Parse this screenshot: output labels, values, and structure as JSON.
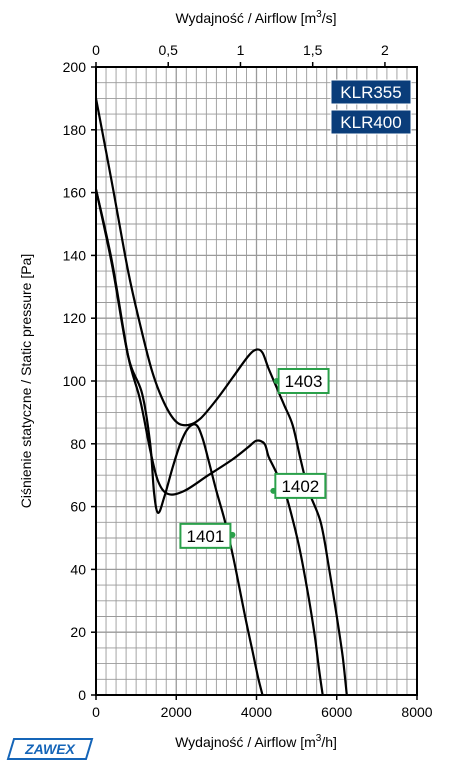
{
  "chart_data": {
    "type": "line",
    "title": "",
    "xlabel": "Wydajność / Airflow [m³/h]",
    "x2label": "Wydajność / Airflow [m³/s]",
    "ylabel": "Ciśnienie statyczne / Static pressure [Pa]",
    "xlim": [
      0,
      8000
    ],
    "x2lim": [
      0,
      2.222
    ],
    "ylim": [
      0,
      200
    ],
    "x_ticks": [
      0,
      2000,
      4000,
      6000,
      8000
    ],
    "x_tick_labels": [
      "0",
      "2000",
      "4000",
      "6000",
      "8000"
    ],
    "x2_ticks": [
      0,
      0.5,
      1,
      1.5,
      2
    ],
    "x2_tick_labels": [
      "0",
      "0,5",
      "1",
      "1,5",
      "2"
    ],
    "y_ticks": [
      0,
      20,
      40,
      60,
      80,
      100,
      120,
      140,
      160,
      180,
      200
    ],
    "y_tick_labels": [
      "0",
      "20",
      "40",
      "60",
      "80",
      "100",
      "120",
      "140",
      "160",
      "180",
      "200"
    ],
    "grid": true,
    "minor_grid_step_x": 250,
    "minor_grid_step_y": 5,
    "badges": [
      "KLR355",
      "KLR400"
    ],
    "series": [
      {
        "name": "1401",
        "label_point": [
          3400,
          51
        ],
        "points": [
          [
            0,
            161
          ],
          [
            400,
            137
          ],
          [
            800,
            108
          ],
          [
            1150,
            96
          ],
          [
            1350,
            80
          ],
          [
            1450,
            64
          ],
          [
            1550,
            58
          ],
          [
            1700,
            63
          ],
          [
            1900,
            72
          ],
          [
            2100,
            80
          ],
          [
            2300,
            85
          ],
          [
            2500,
            86
          ],
          [
            2650,
            82
          ],
          [
            2800,
            75
          ],
          [
            3000,
            65
          ],
          [
            3200,
            56
          ],
          [
            3350,
            48
          ],
          [
            3500,
            39
          ],
          [
            3700,
            26
          ],
          [
            3900,
            14
          ],
          [
            4050,
            5
          ],
          [
            4150,
            0
          ]
        ]
      },
      {
        "name": "1402",
        "label_point": [
          4420,
          65
        ],
        "points": [
          [
            0,
            161
          ],
          [
            400,
            138
          ],
          [
            800,
            108
          ],
          [
            1100,
            94
          ],
          [
            1350,
            78
          ],
          [
            1550,
            68
          ],
          [
            1800,
            64
          ],
          [
            2200,
            65
          ],
          [
            2800,
            70
          ],
          [
            3400,
            75
          ],
          [
            3800,
            79
          ],
          [
            4000,
            81
          ],
          [
            4200,
            80
          ],
          [
            4300,
            76
          ],
          [
            4450,
            72
          ],
          [
            4700,
            65
          ],
          [
            4900,
            56
          ],
          [
            5100,
            45
          ],
          [
            5300,
            31
          ],
          [
            5450,
            19
          ],
          [
            5550,
            9
          ],
          [
            5650,
            0
          ]
        ]
      },
      {
        "name": "1403",
        "label_point": [
          4500,
          100
        ],
        "points": [
          [
            0,
            190
          ],
          [
            400,
            163
          ],
          [
            800,
            135
          ],
          [
            1100,
            118
          ],
          [
            1400,
            103
          ],
          [
            1700,
            93
          ],
          [
            2000,
            87
          ],
          [
            2300,
            86
          ],
          [
            2600,
            88
          ],
          [
            3000,
            94
          ],
          [
            3400,
            101
          ],
          [
            3800,
            108
          ],
          [
            4000,
            110
          ],
          [
            4150,
            109
          ],
          [
            4300,
            104
          ],
          [
            4500,
            98
          ],
          [
            4700,
            92
          ],
          [
            4900,
            86
          ],
          [
            5100,
            75
          ],
          [
            5300,
            65
          ],
          [
            5600,
            55
          ],
          [
            5800,
            41
          ],
          [
            6000,
            25
          ],
          [
            6150,
            12
          ],
          [
            6250,
            0
          ]
        ]
      }
    ]
  },
  "colors": {
    "badge_bg": "#0a3d7a",
    "callout_border": "#2aa04a",
    "grid": "#9a9a9a",
    "line": "#000000",
    "logo": "#1565b8"
  },
  "logo_text": "ZAWEX"
}
